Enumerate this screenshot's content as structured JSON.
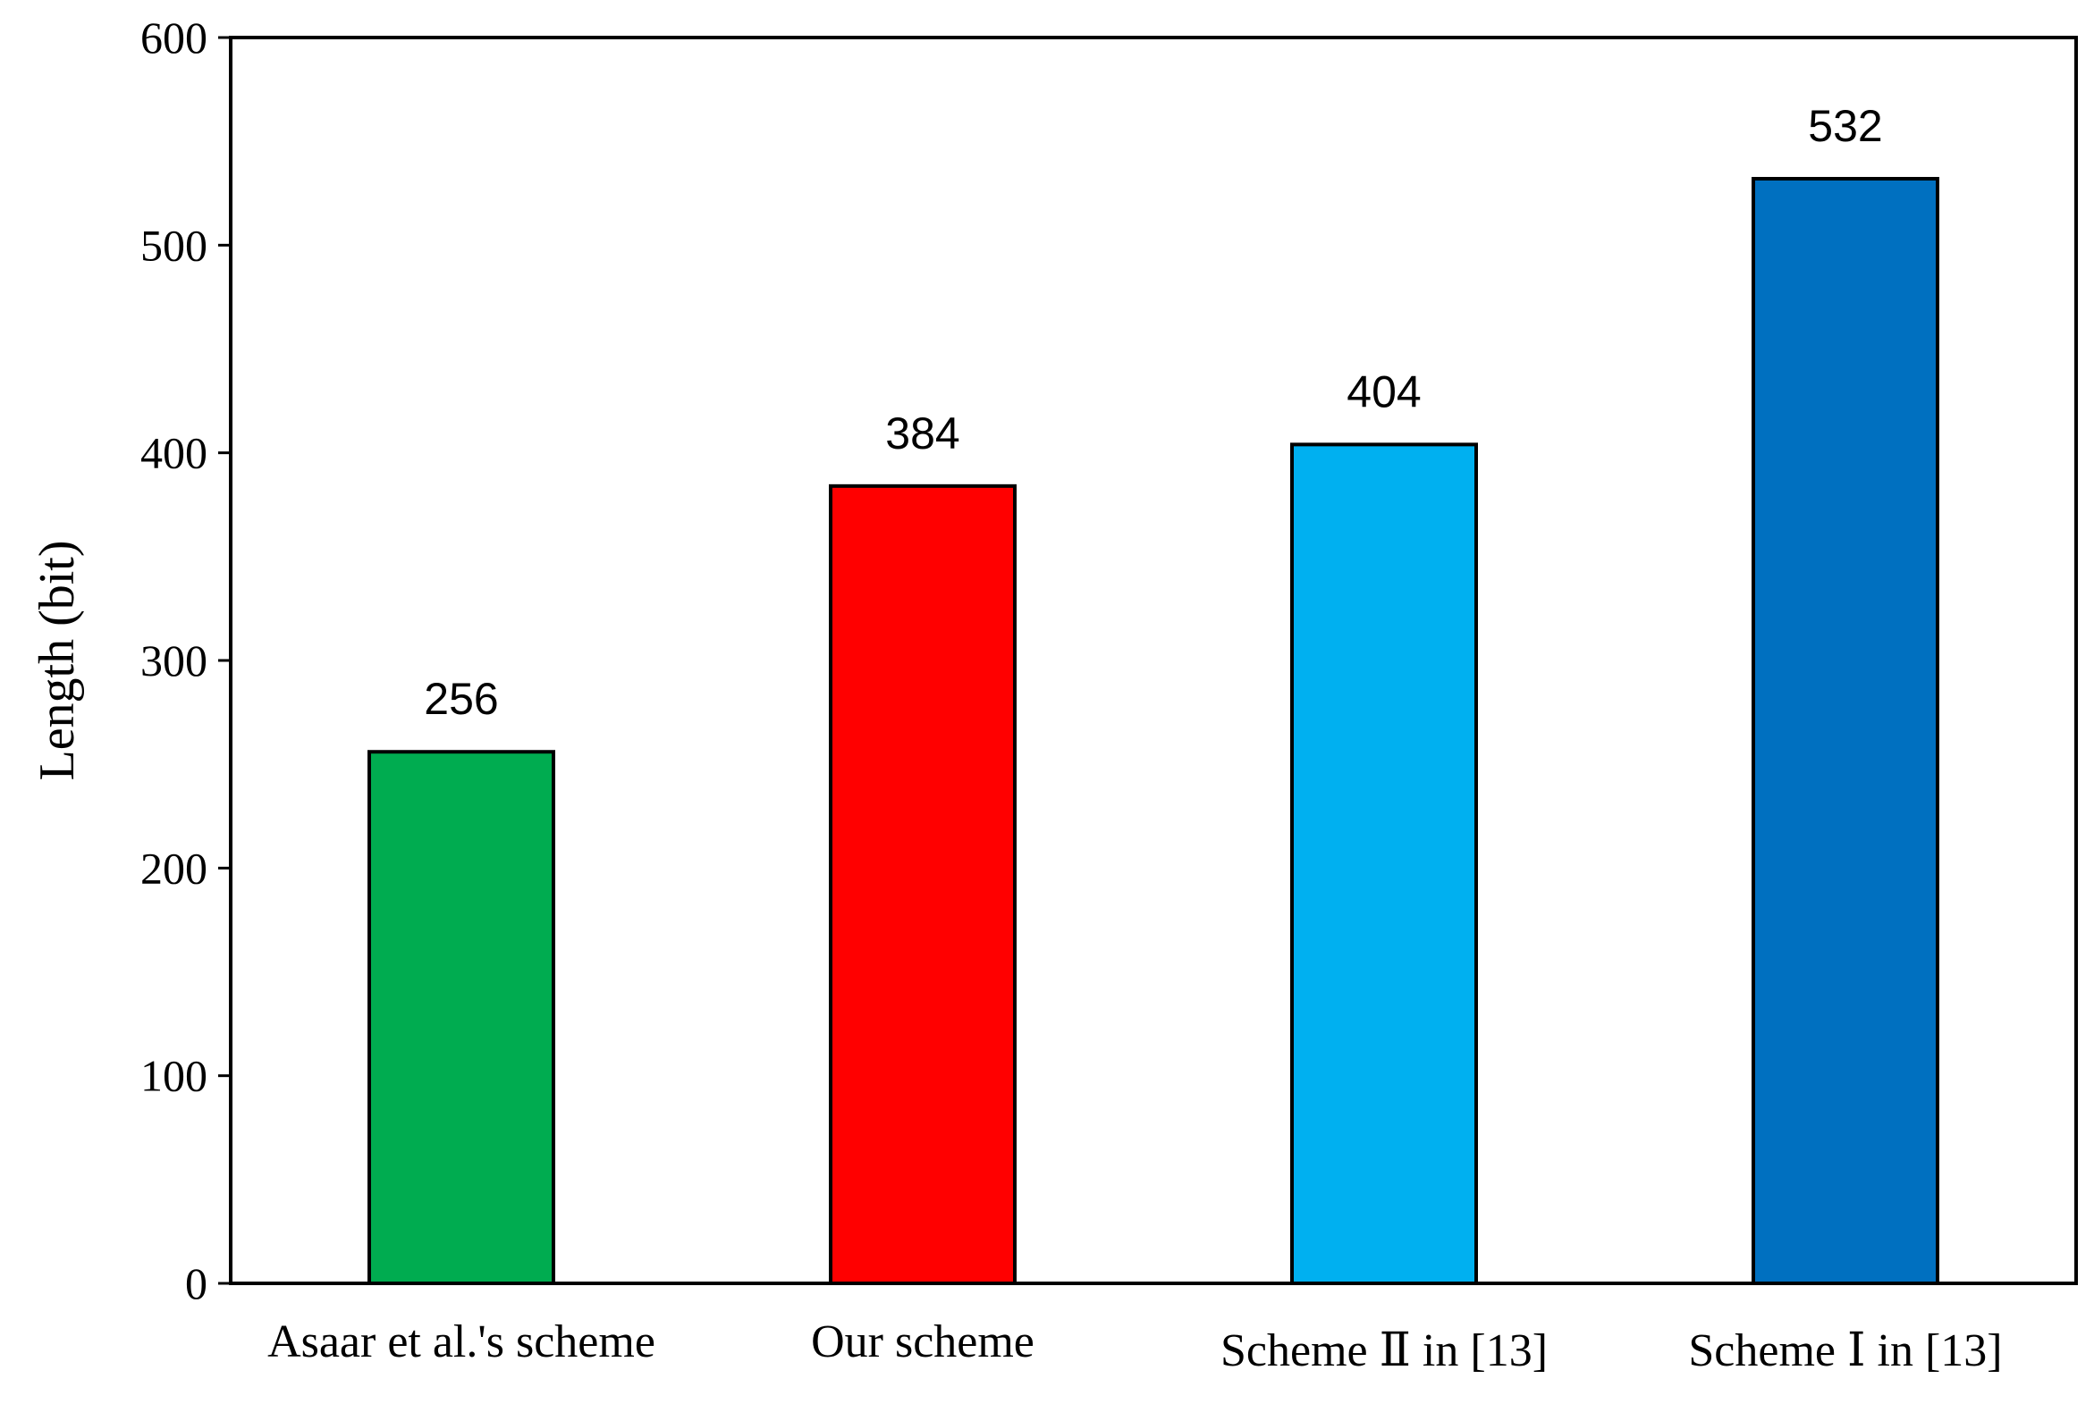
{
  "chart_data": {
    "type": "bar",
    "title": "",
    "xlabel": "",
    "ylabel": "Length (bit)",
    "ylim": [
      0,
      600
    ],
    "yticks": [
      0,
      100,
      200,
      300,
      400,
      500,
      600
    ],
    "categories": [
      "Asaar et al.'s scheme",
      "Our scheme",
      "Scheme Ⅱ in [13]",
      "Scheme Ⅰ in [13]"
    ],
    "values": [
      256,
      384,
      404,
      532
    ],
    "colors": [
      "#00AC50",
      "#FF0000",
      "#00B0F0",
      "#0070C0"
    ],
    "data_labels": [
      "256",
      "384",
      "404",
      "532"
    ],
    "grid": false,
    "legend": "none"
  }
}
